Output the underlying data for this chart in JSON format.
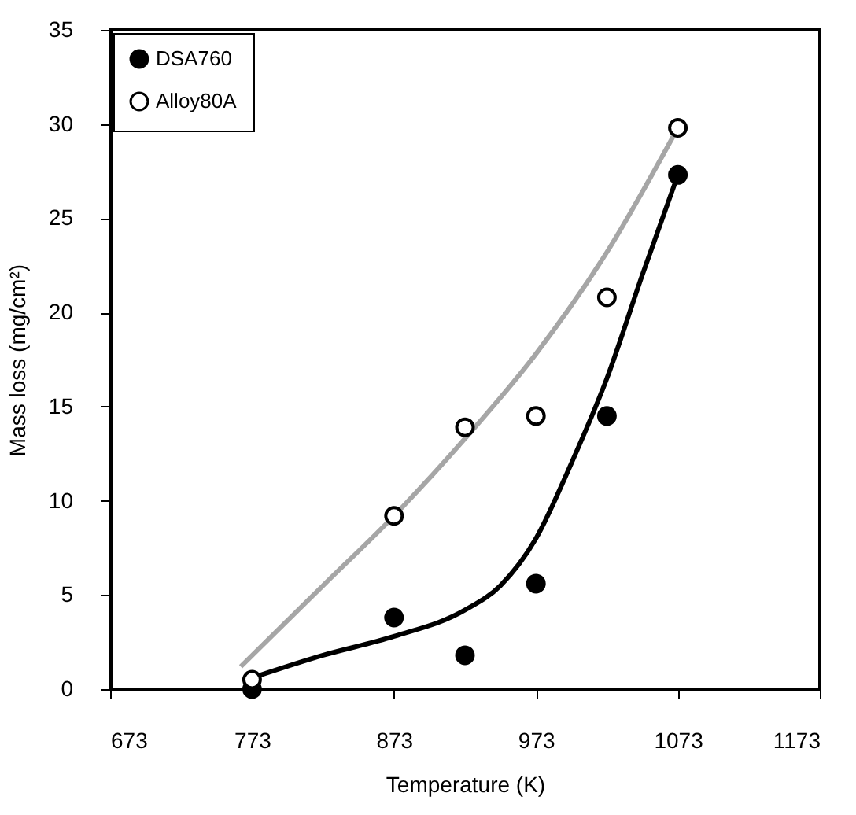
{
  "chart_data": {
    "type": "scatter",
    "xlabel": "Temperature (K)",
    "ylabel": "Mass loss (mg/cm²)",
    "xlim": [
      673,
      1173
    ],
    "xticks": [
      673,
      773,
      873,
      973,
      1073,
      1173
    ],
    "ylim": [
      0,
      35
    ],
    "yticks": [
      0,
      5,
      10,
      15,
      20,
      25,
      30,
      35
    ],
    "grid": false,
    "legend": "top left",
    "series": [
      {
        "name": "DSA760",
        "marker": "circle",
        "color": "#000000",
        "x": [
          773,
          873,
          923,
          973,
          1023,
          1073
        ],
        "values": [
          0.0,
          3.8,
          1.8,
          5.6,
          14.5,
          27.3
        ]
      },
      {
        "name": "Alloy80A",
        "marker": "circle",
        "color": "#ffffff",
        "x": [
          773,
          873,
          923,
          973,
          1023,
          1073
        ],
        "values": [
          0.5,
          9.2,
          13.9,
          14.5,
          20.8,
          29.8
        ]
      },
      {
        "type": "line",
        "marker": "none",
        "color": "#000000",
        "x": [
          773,
          823,
          873,
          923,
          948,
          973,
          998,
          1023,
          1048,
          1073
        ],
        "values": [
          0.6,
          1.8,
          2.8,
          4.2,
          5.5,
          8,
          12,
          16.5,
          22,
          27.3
        ]
      },
      {
        "type": "line",
        "marker": "none",
        "color": "#a6a6a6",
        "x": [
          765,
          823,
          873,
          923,
          973,
          1023,
          1073
        ],
        "values": [
          1.2,
          5.5,
          9.2,
          13.3,
          17.8,
          23.2,
          29.8
        ]
      }
    ]
  }
}
